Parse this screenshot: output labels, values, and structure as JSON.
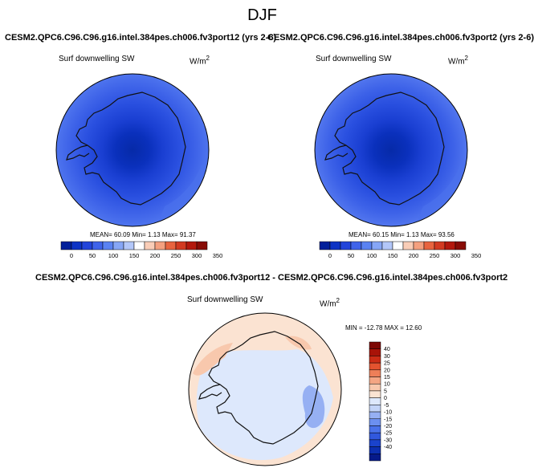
{
  "page": {
    "title": "DJF"
  },
  "colors": {
    "land_outline": "#111111",
    "abs_levels": [
      "#02209a",
      "#0d33c4",
      "#2244da",
      "#3f63ea",
      "#5a82f2",
      "#86a6f6",
      "#b3c7f9",
      "#ffffff",
      "#f9cdb7",
      "#f4a07f",
      "#e8643f",
      "#d23a21",
      "#b3180d",
      "#880c06"
    ],
    "diff_levels": [
      "#061a8a",
      "#0c2fb0",
      "#1a43cc",
      "#3158dd",
      "#4a72ea",
      "#6c90f0",
      "#96b0f3",
      "#c3d4f8",
      "#dde8fc",
      "#fbe3d2",
      "#f8c8ad",
      "#f4a583",
      "#ee7f58",
      "#e3532f",
      "#cb2c15",
      "#a81308",
      "#7d0704"
    ]
  },
  "panels": {
    "left": {
      "title": "CESM2.QPC6.C96.C96.g16.intel.384pes.ch006.fv3port12 (yrs 2-6)",
      "variable": "Surf downwelling SW",
      "units_base": "W/m",
      "units_exp": "2",
      "stats": "MEAN=  60.09  Min=   1.13  Max=  91.37",
      "colorbar_ticks": [
        "0",
        "50",
        "100",
        "150",
        "200",
        "250",
        "300",
        "350"
      ]
    },
    "right": {
      "title": "CESM2.QPC6.C96.C96.g16.intel.384pes.ch006.fv3port2 (yrs 2-6)",
      "variable": "Surf downwelling SW",
      "units_base": "W/m",
      "units_exp": "2",
      "stats": "MEAN=  60.15  Min=   1.13  Max=  93.56",
      "colorbar_ticks": [
        "0",
        "50",
        "100",
        "150",
        "200",
        "250",
        "300",
        "350"
      ]
    },
    "diff": {
      "title": "CESM2.QPC6.C96.C96.g16.intel.384pes.ch006.fv3port12 - CESM2.QPC6.C96.C96.g16.intel.384pes.ch006.fv3port2",
      "variable": "Surf downwelling SW",
      "units_base": "W/m",
      "units_exp": "2",
      "stats": "MIN = -12.78 MAX =  12.60",
      "colorbar_ticks": [
        "40",
        "30",
        "25",
        "20",
        "15",
        "10",
        "5",
        "0",
        "-5",
        "-10",
        "-15",
        "-20",
        "-25",
        "-30",
        "-40"
      ]
    }
  },
  "chart_data": [
    {
      "type": "heatmap",
      "title": "CESM2.QPC6.C96.C96.g16.intel.384pes.ch006.fv3port12 (yrs 2-6)",
      "variable": "Surf downwelling SW",
      "units": "W/m2",
      "projection": "south polar stereographic",
      "mean": 60.09,
      "min": 1.13,
      "max": 91.37,
      "levels": [
        0,
        50,
        100,
        150,
        200,
        250,
        300,
        350
      ]
    },
    {
      "type": "heatmap",
      "title": "CESM2.QPC6.C96.C96.g16.intel.384pes.ch006.fv3port2 (yrs 2-6)",
      "variable": "Surf downwelling SW",
      "units": "W/m2",
      "projection": "south polar stereographic",
      "mean": 60.15,
      "min": 1.13,
      "max": 93.56,
      "levels": [
        0,
        50,
        100,
        150,
        200,
        250,
        300,
        350
      ]
    },
    {
      "type": "heatmap",
      "title": "CESM2.QPC6.C96.C96.g16.intel.384pes.ch006.fv3port12 - CESM2.QPC6.C96.C96.g16.intel.384pes.ch006.fv3port2",
      "variable": "Surf downwelling SW",
      "units": "W/m2",
      "projection": "south polar stereographic",
      "min": -12.78,
      "max": 12.6,
      "levels": [
        -40,
        -30,
        -25,
        -20,
        -15,
        -10,
        -5,
        0,
        5,
        10,
        15,
        20,
        25,
        30,
        40
      ]
    }
  ]
}
